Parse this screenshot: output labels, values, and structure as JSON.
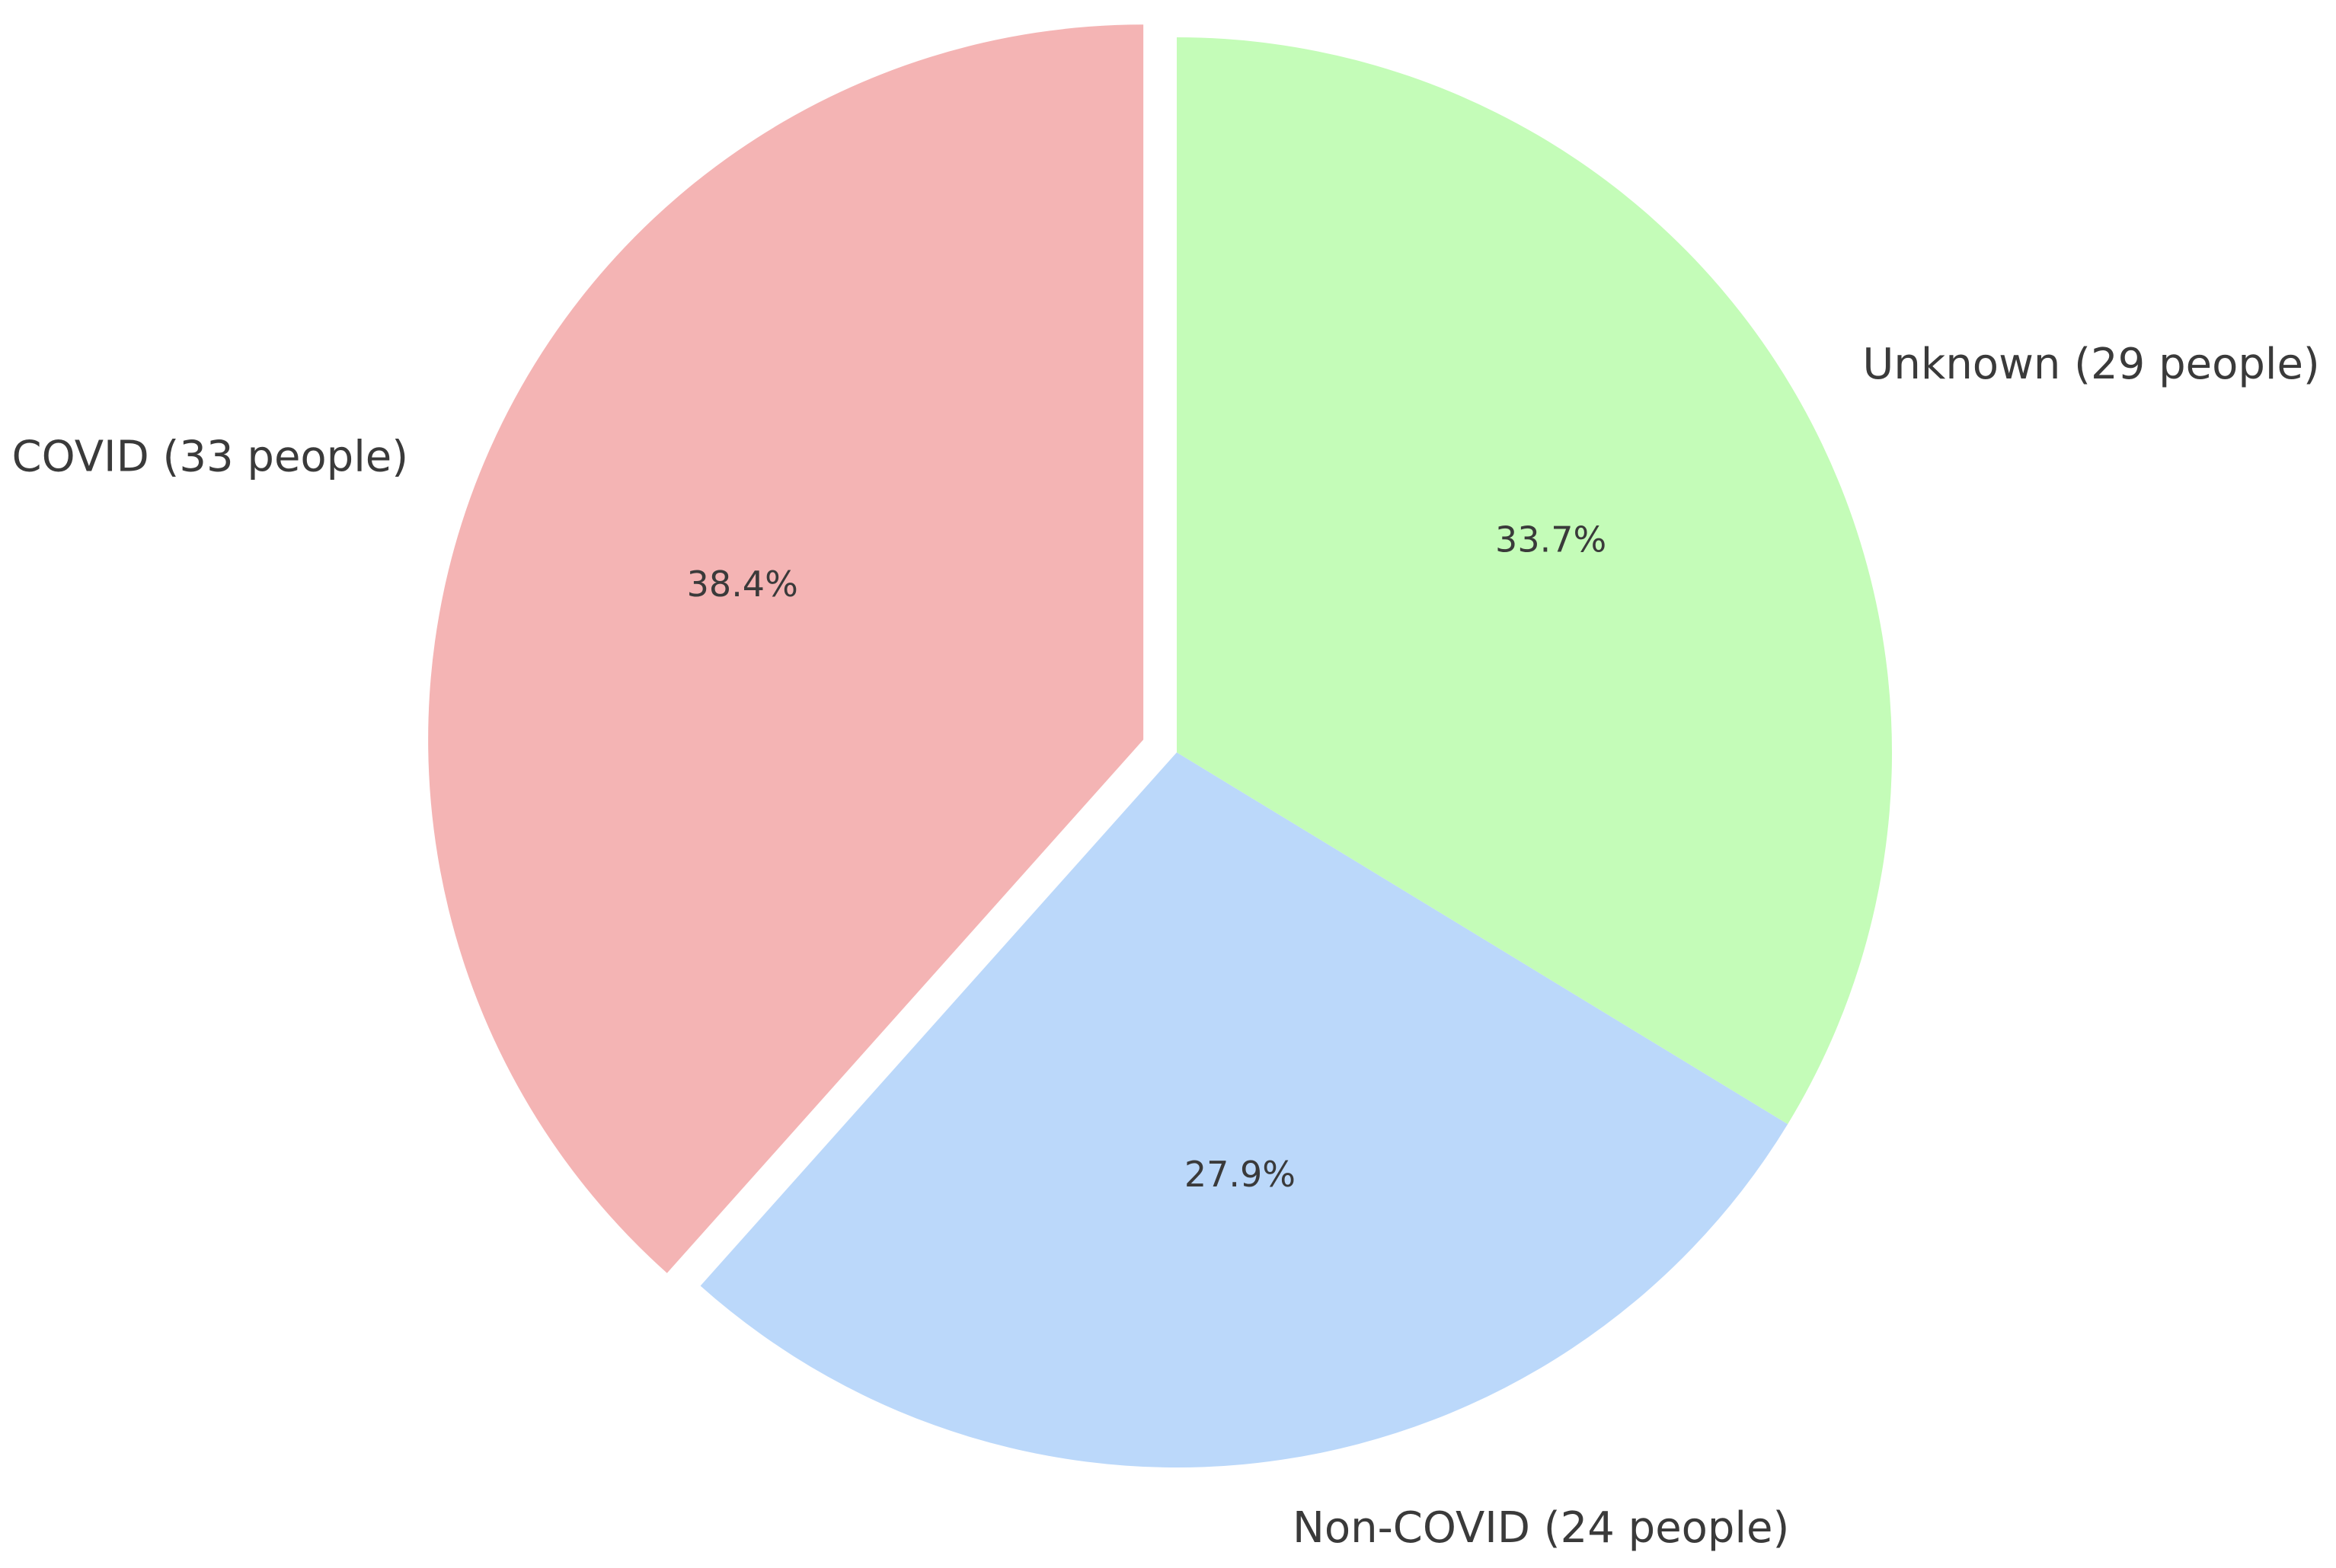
{
  "chart_data": {
    "type": "pie",
    "categories": [
      "COVID (33 people)",
      "Non-COVID (24 people)",
      "Unknown (29 people)"
    ],
    "values": [
      38.4,
      27.9,
      33.7
    ],
    "value_labels": [
      "38.4%",
      "27.9%",
      "33.7%"
    ],
    "colors": [
      "#f4b4b4",
      "#bbd8fa",
      "#c4fcb8"
    ]
  }
}
